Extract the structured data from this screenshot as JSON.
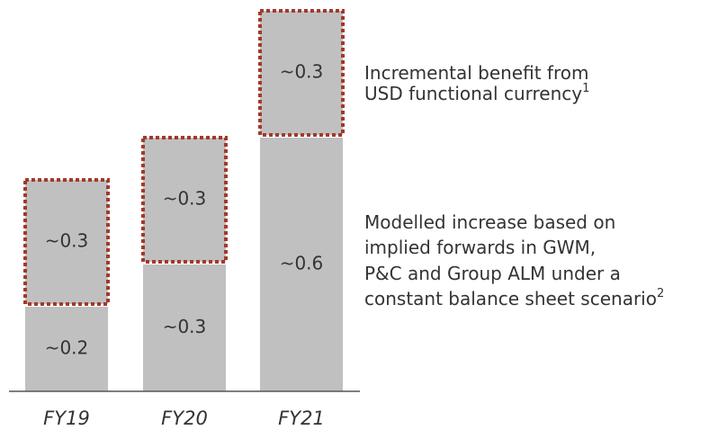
{
  "chart_data": {
    "type": "stacked_bar",
    "categories": [
      "FY19",
      "FY20",
      "FY21"
    ],
    "ylim": [
      0,
      0.9
    ],
    "series": [
      {
        "name_lines": [
          "Modelled increase based on",
          "implied forwards in GWM,",
          "P&C and Group ALM under a",
          "constant balance sheet scenario"
        ],
        "footnote": "2",
        "color": "#c0c0c0",
        "outline": null,
        "values": [
          0.2,
          0.3,
          0.6
        ],
        "value_labels": [
          "~0.2",
          "~0.3",
          "~0.6"
        ]
      },
      {
        "name_lines": [
          "Incremental benefit from",
          "USD functional currency"
        ],
        "footnote": "1",
        "color": "#c0c0c0",
        "outline": "#a23a2c",
        "values": [
          0.3,
          0.3,
          0.3
        ],
        "value_labels": [
          "~0.3",
          "~0.3",
          "~0.3"
        ]
      }
    ]
  }
}
